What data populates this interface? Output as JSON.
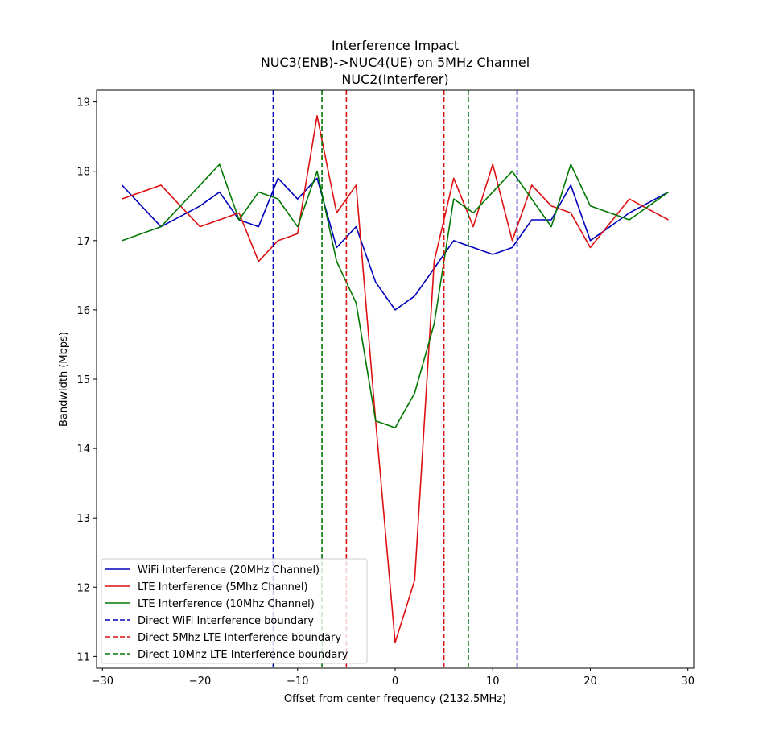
{
  "chart_data": {
    "type": "line",
    "title_lines": [
      "Interference Impact",
      "NUC3(ENB)->NUC4(UE) on 5MHz Channel",
      "NUC2(Interferer)"
    ],
    "xlabel": "Offset from center frequency (2132.5MHz)",
    "ylabel": "Bandwidth (Mbps)",
    "xlim": [
      -30.6,
      30.6
    ],
    "ylim": [
      10.83,
      19.17
    ],
    "xticks": [
      -30,
      -20,
      -10,
      0,
      10,
      20,
      30
    ],
    "xtick_labels": [
      "−30",
      "−20",
      "−10",
      "0",
      "10",
      "20",
      "30"
    ],
    "yticks": [
      11,
      12,
      13,
      14,
      15,
      16,
      17,
      18,
      19
    ],
    "ytick_labels": [
      "11",
      "12",
      "13",
      "14",
      "15",
      "16",
      "17",
      "18",
      "19"
    ],
    "grid": false,
    "legend_position": "lower-left",
    "series": [
      {
        "name": "WiFi Interference (20MHz Channel)",
        "color": "#0000bb",
        "style": "solid",
        "x": [
          -28,
          -24,
          -20,
          -18,
          -16,
          -14,
          -12,
          -10,
          -8,
          -6,
          -4,
          -2,
          0,
          2,
          4,
          6,
          8,
          10,
          12,
          14,
          16,
          18,
          20,
          24,
          28
        ],
        "y": [
          17.8,
          17.2,
          17.5,
          17.7,
          17.3,
          17.2,
          17.9,
          17.6,
          17.9,
          16.9,
          17.2,
          16.4,
          16.0,
          16.2,
          16.6,
          17.0,
          16.9,
          16.8,
          16.9,
          17.3,
          17.3,
          17.8,
          17.0,
          17.4,
          17.7
        ]
      },
      {
        "name": "LTE Interference (5Mhz Channel)",
        "color": "#dd1111",
        "style": "solid",
        "x": [
          -28,
          -24,
          -20,
          -16,
          -14,
          -12,
          -10,
          -8,
          -6,
          -4,
          -2,
          0,
          2,
          4,
          6,
          8,
          10,
          12,
          14,
          16,
          18,
          20,
          24,
          28
        ],
        "y": [
          17.6,
          17.8,
          17.2,
          17.4,
          16.7,
          17.0,
          17.1,
          18.8,
          17.4,
          17.8,
          14.4,
          11.2,
          12.1,
          16.7,
          17.9,
          17.2,
          18.1,
          17.0,
          17.8,
          17.5,
          17.4,
          16.9,
          17.6,
          17.3
        ]
      },
      {
        "name": "LTE Interference (10Mhz Channel)",
        "color": "#007700",
        "style": "solid",
        "x": [
          -28,
          -24,
          -18,
          -16,
          -14,
          -12,
          -10,
          -8,
          -6,
          -4,
          -2,
          0,
          2,
          4,
          6,
          8,
          10,
          12,
          14,
          16,
          18,
          20,
          24,
          28
        ],
        "y": [
          17.0,
          17.2,
          18.1,
          17.3,
          17.7,
          17.6,
          17.2,
          18.0,
          16.7,
          16.1,
          14.4,
          14.3,
          14.8,
          15.8,
          17.6,
          17.4,
          17.7,
          18.0,
          17.6,
          17.2,
          18.1,
          17.5,
          17.3,
          17.7
        ]
      }
    ],
    "boundaries": [
      {
        "name": "Direct WiFi Interference boundary",
        "color": "#0000bb",
        "style": "dashed",
        "x": [
          -12.5,
          12.5
        ]
      },
      {
        "name": "Direct 5Mhz LTE Interference boundary",
        "color": "#dd1111",
        "style": "dashed",
        "x": [
          -5,
          5
        ]
      },
      {
        "name": "Direct 10Mhz LTE Interference boundary",
        "color": "#007700",
        "style": "dashed",
        "x": [
          -7.5,
          7.5
        ]
      }
    ]
  }
}
